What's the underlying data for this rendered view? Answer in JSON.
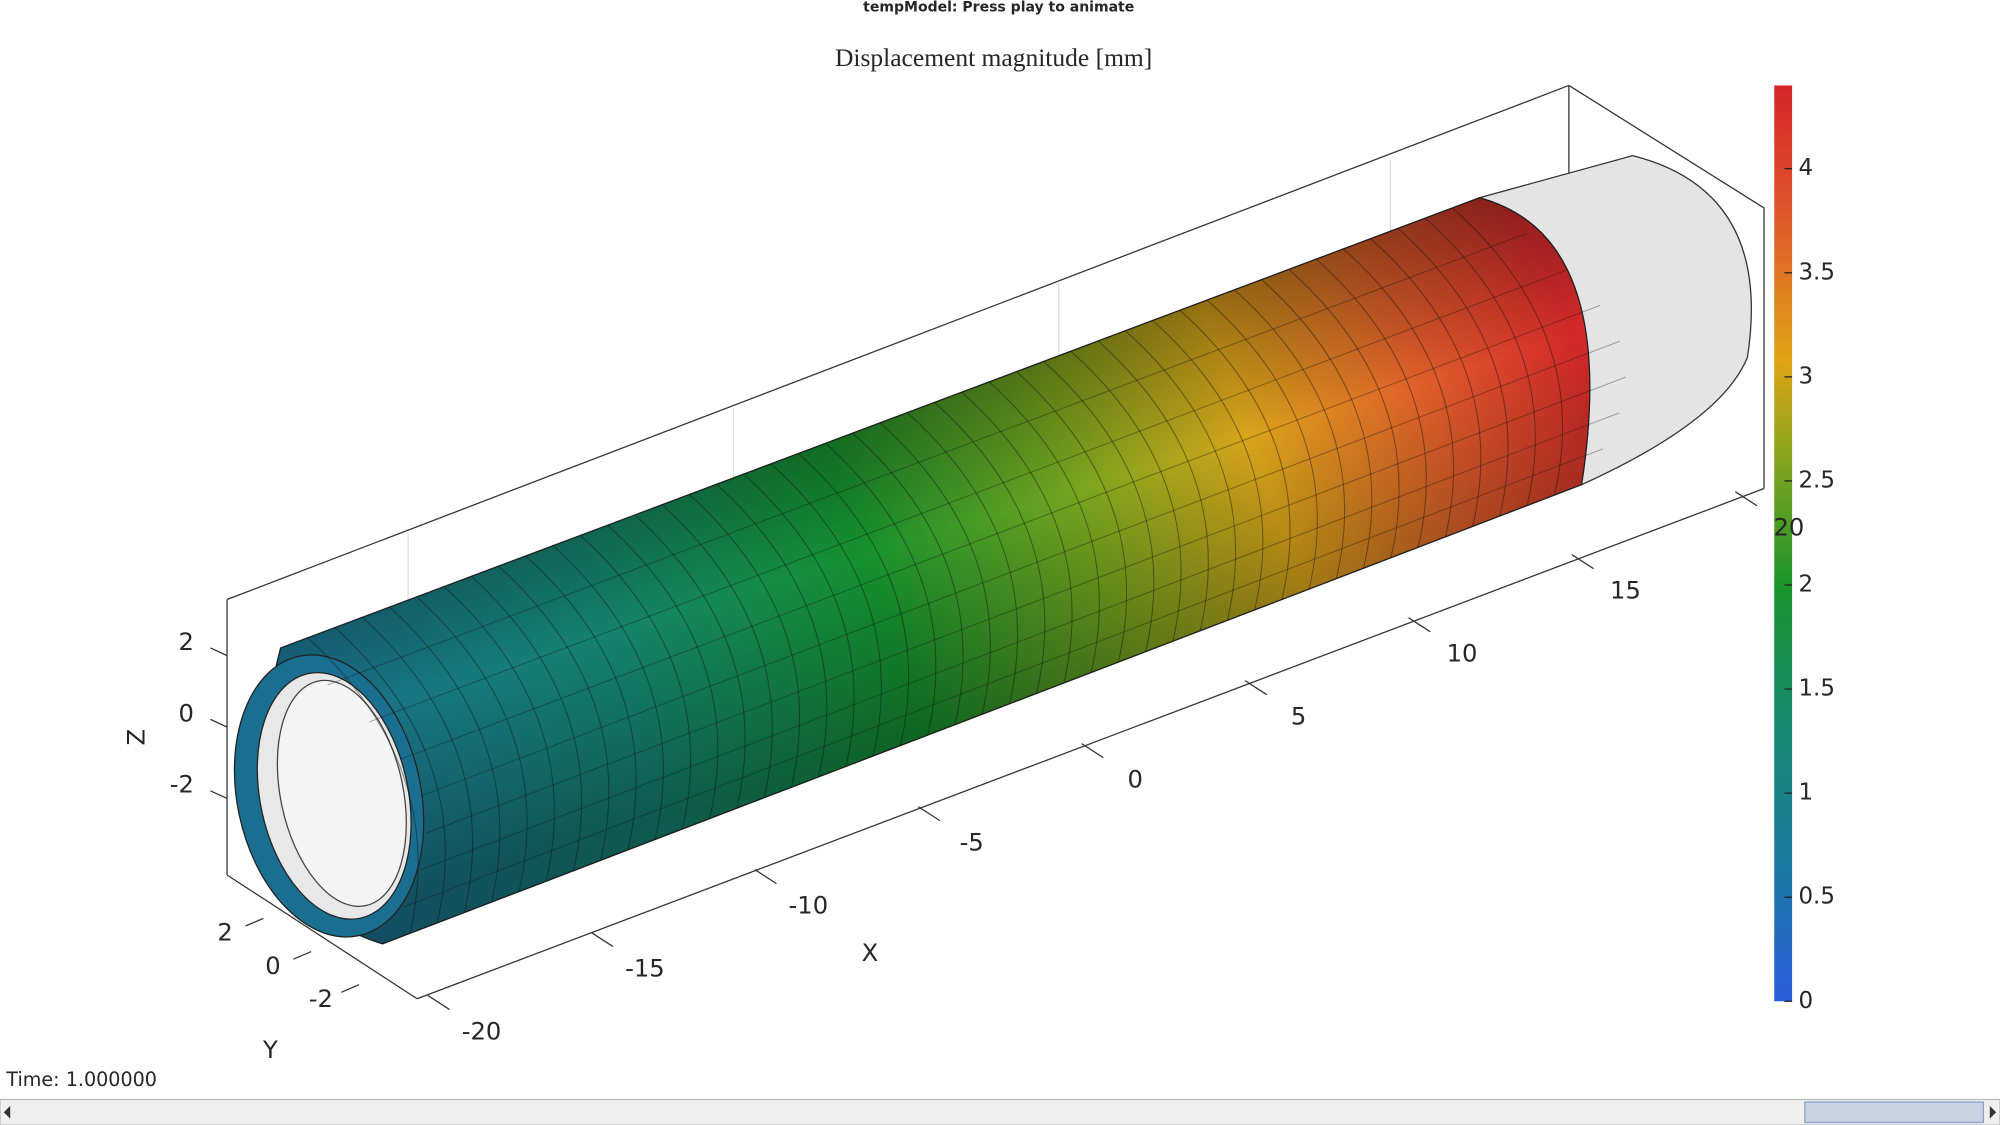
{
  "window": {
    "title": "tempModel: Press play to animate"
  },
  "axes": {
    "title": "Displacement magnitude [mm]",
    "xlabel": "X",
    "ylabel": "Y",
    "zlabel": "Z",
    "xticks": [
      -20,
      -15,
      -10,
      -5,
      0,
      5,
      10,
      15,
      20
    ],
    "yticks": [
      2,
      0,
      -2
    ],
    "zticks": [
      2,
      0,
      -2
    ]
  },
  "colorbar": {
    "clim": [
      0,
      4.4
    ],
    "ticks": [
      0,
      0.5,
      1,
      1.5,
      2,
      2.5,
      3,
      3.5,
      4
    ]
  },
  "status": {
    "time": "Time: 1.000000"
  }
}
